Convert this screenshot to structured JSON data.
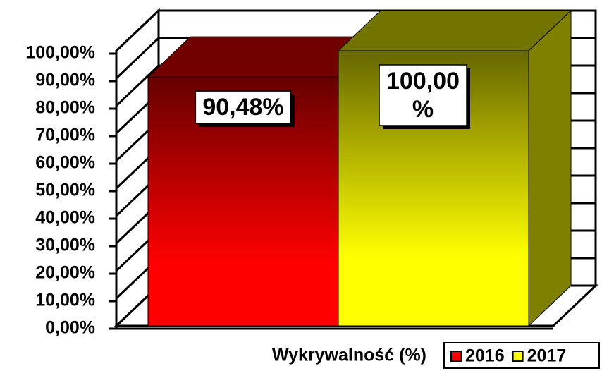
{
  "chart_data": {
    "type": "bar3d",
    "categories": [
      "Wykrywalność (%)"
    ],
    "series": [
      {
        "name": "2016",
        "color": "#ff0000",
        "values": [
          90.48
        ],
        "value_labels": [
          "90,48%"
        ]
      },
      {
        "name": "2017",
        "color": "#ffff00",
        "values": [
          100
        ],
        "value_labels": [
          "100,00 %"
        ]
      }
    ],
    "ylim": [
      0,
      100
    ],
    "yticks": [
      {
        "value": 0,
        "label": "0,00%"
      },
      {
        "value": 10,
        "label": "10,00%"
      },
      {
        "value": 20,
        "label": "20,00%"
      },
      {
        "value": 30,
        "label": "30,00%"
      },
      {
        "value": 40,
        "label": "40,00%"
      },
      {
        "value": 50,
        "label": "50,00%"
      },
      {
        "value": 60,
        "label": "60,00%"
      },
      {
        "value": 70,
        "label": "70,00%"
      },
      {
        "value": 80,
        "label": "80,00%"
      },
      {
        "value": 90,
        "label": "90,00%"
      },
      {
        "value": 100,
        "label": "100,00%"
      }
    ],
    "grid": true,
    "legend": "bottom-right"
  }
}
